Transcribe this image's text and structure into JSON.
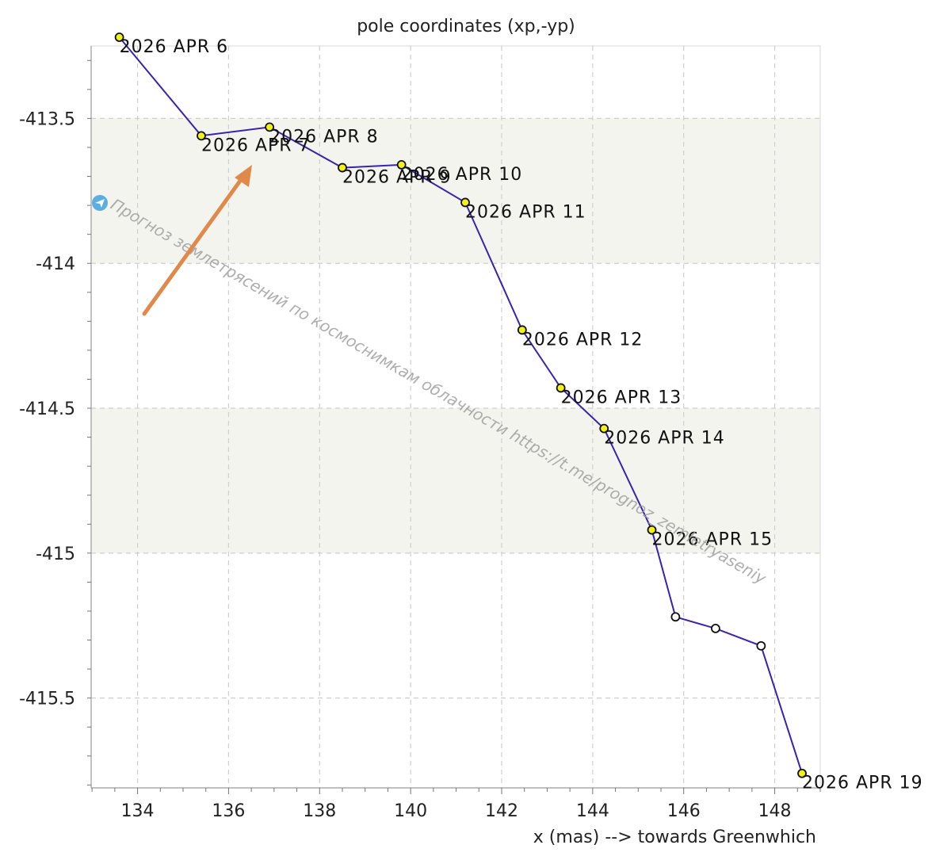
{
  "chart_data": {
    "type": "line",
    "title": "pole coordinates (xp,-yp)",
    "xlabel": "x (mas) --> towards Greenwhich",
    "ylabel": "",
    "xlim": [
      132.98,
      149.0
    ],
    "ylim": [
      -415.81,
      -413.25
    ],
    "x_ticks": [
      134,
      136,
      138,
      140,
      142,
      144,
      146,
      148
    ],
    "y_ticks": [
      -413.5,
      -414,
      -414.5,
      -415,
      -415.5
    ],
    "y_tick_labels": [
      "-413.5",
      "-414",
      "-414.5",
      "-415",
      "-415.5"
    ],
    "grid": true,
    "shaded_bands": [
      [
        -413.5,
        -414
      ],
      [
        -414.5,
        -415
      ]
    ],
    "series": [
      {
        "points": [
          {
            "x": 133.6,
            "y": -413.22,
            "label": "2026 APR 6",
            "kind": "observed"
          },
          {
            "x": 135.4,
            "y": -413.56,
            "label": "2026 APR 7",
            "kind": "observed"
          },
          {
            "x": 136.9,
            "y": -413.53,
            "label": "2026 APR 8",
            "kind": "observed"
          },
          {
            "x": 138.5,
            "y": -413.67,
            "label": "2026 APR 9",
            "kind": "observed"
          },
          {
            "x": 139.8,
            "y": -413.66,
            "label": "2026 APR 10",
            "kind": "observed"
          },
          {
            "x": 141.2,
            "y": -413.79,
            "label": "2026 APR 11",
            "kind": "observed"
          },
          {
            "x": 142.45,
            "y": -414.23,
            "label": "2026 APR 12",
            "kind": "observed"
          },
          {
            "x": 143.3,
            "y": -414.43,
            "label": "2026 APR 13",
            "kind": "observed"
          },
          {
            "x": 144.25,
            "y": -414.57,
            "label": "2026 APR 14",
            "kind": "observed"
          },
          {
            "x": 145.3,
            "y": -414.92,
            "label": "2026 APR 15",
            "kind": "observed"
          },
          {
            "x": 145.82,
            "y": -415.22,
            "label": "",
            "kind": "predicted"
          },
          {
            "x": 146.7,
            "y": -415.26,
            "label": "",
            "kind": "predicted"
          },
          {
            "x": 147.7,
            "y": -415.32,
            "label": "",
            "kind": "predicted"
          },
          {
            "x": 148.6,
            "y": -415.76,
            "label": "2026 APR 19",
            "kind": "observed"
          }
        ]
      }
    ],
    "colors": {
      "line": "#3a22b0",
      "observed_fill": "#f2f21a",
      "predicted_fill": "#ffffff",
      "band": "#f4f4ef",
      "arrow": "#e0894a",
      "badge": "#5aaee0"
    }
  },
  "watermark_text": "Прогноз землетрясений по космоснимкам облачности  https://t.me/prognoz_zemletryaseniy"
}
